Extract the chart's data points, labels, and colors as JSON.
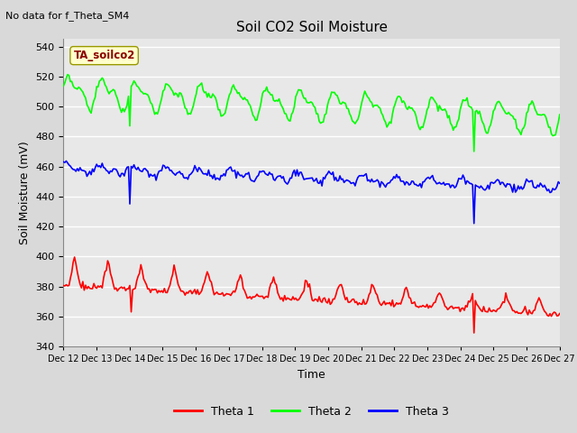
{
  "title": "Soil CO2 Soil Moisture",
  "subtitle": "No data for f_Theta_SM4",
  "ylabel": "Soil Moisture (mV)",
  "xlabel": "Time",
  "annotation": "TA_soilco2",
  "ylim": [
    340,
    545
  ],
  "yticks": [
    340,
    360,
    380,
    400,
    420,
    440,
    460,
    480,
    500,
    520,
    540
  ],
  "xtick_labels": [
    "Dec 12",
    "Dec 13",
    "Dec 14",
    "Dec 15",
    "Dec 16",
    "Dec 17",
    "Dec 18",
    "Dec 19",
    "Dec 20",
    "Dec 21",
    "Dec 22",
    "Dec 23",
    "Dec 24",
    "Dec 25",
    "Dec 26",
    "Dec 27"
  ],
  "bg_color": "#d9d9d9",
  "plot_bg": "#e8e8e8",
  "grid_color": "#ffffff",
  "theta1_color": "#ff0000",
  "theta2_color": "#00ff00",
  "theta3_color": "#0000ff",
  "legend_labels": [
    "Theta 1",
    "Theta 2",
    "Theta 3"
  ]
}
